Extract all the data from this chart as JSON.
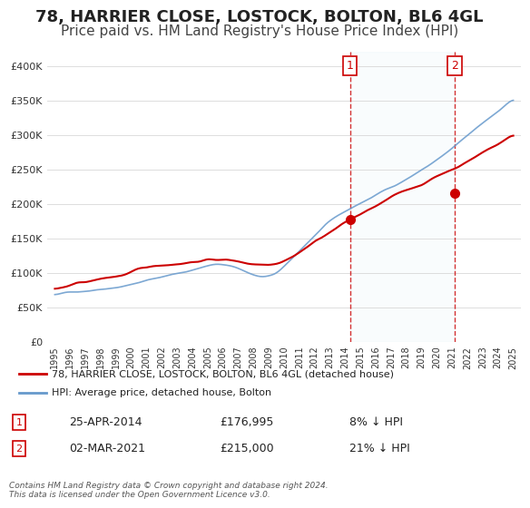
{
  "title": "78, HARRIER CLOSE, LOSTOCK, BOLTON, BL6 4GL",
  "subtitle": "Price paid vs. HM Land Registry's House Price Index (HPI)",
  "title_fontsize": 13,
  "subtitle_fontsize": 11,
  "sale1_date": "25-APR-2014",
  "sale1_price": 176995,
  "sale1_pct": "8% ↓ HPI",
  "sale2_date": "02-MAR-2021",
  "sale2_price": 215000,
  "sale2_pct": "21% ↓ HPI",
  "sale1_x": 2014.32,
  "sale2_x": 2021.17,
  "legend_label_red": "78, HARRIER CLOSE, LOSTOCK, BOLTON, BL6 4GL (detached house)",
  "legend_label_blue": "HPI: Average price, detached house, Bolton",
  "footnote": "Contains HM Land Registry data © Crown copyright and database right 2024.\nThis data is licensed under the Open Government Licence v3.0.",
  "red_color": "#cc0000",
  "blue_color": "#6699cc",
  "dot_color": "#cc0000",
  "vline_color": "#cc0000",
  "background_color": "#ffffff",
  "grid_color": "#dddddd",
  "xlabel_color": "#333333",
  "ylabel_color": "#333333",
  "ylim": [
    0,
    420000
  ],
  "xlim": [
    1994.5,
    2025.5
  ]
}
